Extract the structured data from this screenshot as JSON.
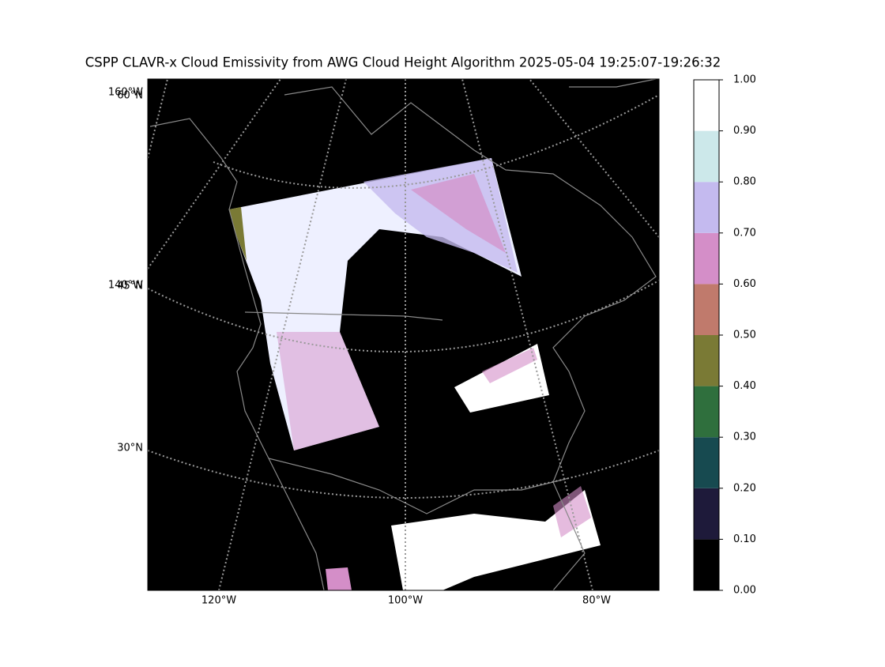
{
  "chart_data": {
    "type": "map",
    "title": "CSPP CLAVR-x Cloud Emissivity from AWG Cloud Height Algorithm 2025-05-04 19:25:07-19:26:32",
    "lon_labels": [
      "120°W",
      "100°W",
      "80°W"
    ],
    "lat_labels": [
      "160°W",
      "60°N",
      "140°W",
      "45°N",
      "30°N"
    ],
    "colorbar": {
      "lim": [
        0,
        1
      ],
      "ticks": [
        {
          "value": 0,
          "label": "0.00"
        },
        {
          "value": 0.1,
          "label": "0.10"
        },
        {
          "value": 0.2,
          "label": "0.20"
        },
        {
          "value": 0.3,
          "label": "0.30"
        },
        {
          "value": 0.4,
          "label": "0.40"
        },
        {
          "value": 0.5,
          "label": "0.50"
        },
        {
          "value": 0.6,
          "label": "0.60"
        },
        {
          "value": 0.7,
          "label": "0.70"
        },
        {
          "value": 0.8,
          "label": "0.80"
        },
        {
          "value": 0.9,
          "label": "0.90"
        },
        {
          "value": 1,
          "label": "1.00"
        }
      ],
      "colors": [
        "#000000",
        "#1e1a3a",
        "#174a50",
        "#2f6f3d",
        "#7a7a35",
        "#c07a6c",
        "#d48ec8",
        "#c4baef",
        "#cce8ea",
        "#ffffff"
      ]
    }
  }
}
